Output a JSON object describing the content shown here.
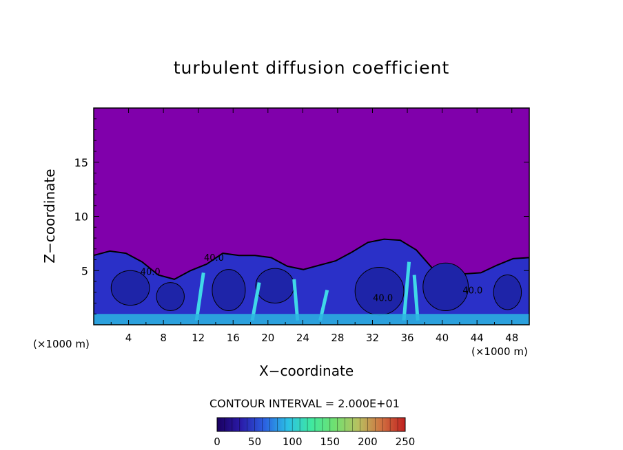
{
  "chart_data": {
    "type": "heatmap",
    "title": "turbulent diffusion coefficient",
    "xlabel": "X−coordinate",
    "ylabel": "Z−coordinate",
    "x_unit": "(×1000 m)",
    "y_unit": "(×1000 m)",
    "xlim": [
      0,
      50
    ],
    "ylim": [
      0,
      20
    ],
    "x_ticks": [
      4,
      8,
      12,
      16,
      20,
      24,
      28,
      32,
      36,
      40,
      44,
      48
    ],
    "y_ticks": [
      5,
      10,
      15
    ],
    "contour_interval_label": "CONTOUR INTERVAL = 2.000E+01",
    "contour_interval": 20,
    "contour_labels": [
      {
        "text": "40.0",
        "x": 6.5,
        "z": 4.6
      },
      {
        "text": "40.0",
        "x": 13.8,
        "z": 5.9
      },
      {
        "text": "40.0",
        "x": 33.2,
        "z": 2.2
      },
      {
        "text": "40.0",
        "x": 43.5,
        "z": 2.9
      }
    ],
    "colorbar": {
      "min": 0,
      "max": 250,
      "ticks": [
        0,
        50,
        100,
        150,
        200,
        250
      ],
      "colors": [
        "#1a0060",
        "#2a1aa8",
        "#2b5fe0",
        "#2bc0e6",
        "#3fe8a0",
        "#70e070",
        "#b8c060",
        "#d07040",
        "#c02020"
      ]
    },
    "background_color": "#8000ab",
    "boundary_top_z": [
      6.4,
      6.8,
      6.6,
      5.8,
      4.6,
      4.2,
      5.0,
      5.6,
      6.6,
      6.4,
      6.4,
      6.2,
      5.4,
      5.1,
      5.5,
      5.9,
      6.7,
      7.6,
      7.9,
      7.8,
      6.9,
      5.2,
      4.5,
      4.7,
      4.8,
      5.5,
      6.1,
      6.2
    ]
  }
}
